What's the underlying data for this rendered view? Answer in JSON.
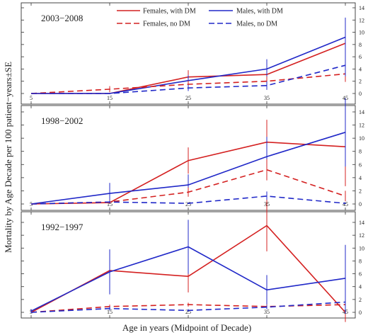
{
  "chart_data": {
    "type": "line",
    "xlabel": "Age in years (Midpoint of Decade)",
    "ylabel": "Mortality by Age Decade per 100 patient−years±SE",
    "x": [
      5,
      15,
      25,
      35,
      45
    ],
    "ylim": [
      0,
      14
    ],
    "yticks": [
      0,
      2,
      4,
      6,
      8,
      10,
      12,
      14
    ],
    "grid": false,
    "legend_position": "top",
    "legend": [
      {
        "name": "Females, with DM",
        "color": "#d42020",
        "dash": "solid"
      },
      {
        "name": "Males, with DM",
        "color": "#2028c8",
        "dash": "solid"
      },
      {
        "name": "Females, no DM",
        "color": "#d42020",
        "dash": "dashed"
      },
      {
        "name": "Males, no DM",
        "color": "#2028c8",
        "dash": "dashed"
      }
    ],
    "panels": [
      {
        "label": "2003−2008",
        "series": [
          {
            "name": "Females, with DM",
            "values": [
              0,
              0,
              2.7,
              3.1,
              8.2
            ],
            "se": [
              0,
              0,
              1.1,
              1.3,
              2.7
            ]
          },
          {
            "name": "Males, with DM",
            "values": [
              0,
              0,
              2.1,
              4.0,
              9.2
            ],
            "se": [
              0,
              0,
              0.9,
              1.6,
              3.2
            ]
          },
          {
            "name": "Females, no DM",
            "values": [
              0,
              0.7,
              1.5,
              2.0,
              3.2
            ],
            "se": [
              0,
              0.5,
              0.6,
              0.8,
              1.3
            ]
          },
          {
            "name": "Males, no DM",
            "values": [
              0,
              0,
              0.9,
              1.3,
              4.6
            ],
            "se": [
              0,
              0,
              0.5,
              0.7,
              1.8
            ]
          }
        ]
      },
      {
        "label": "1998−2002",
        "series": [
          {
            "name": "Females, with DM",
            "values": [
              0,
              0.2,
              6.6,
              9.4,
              8.7
            ],
            "se": [
              0,
              0.2,
              2.0,
              3.4,
              6.0
            ]
          },
          {
            "name": "Males, with DM",
            "values": [
              0,
              1.6,
              2.9,
              7.2,
              10.9
            ],
            "se": [
              0,
              1.6,
              1.6,
              3.0,
              5.2
            ]
          },
          {
            "name": "Females, no DM",
            "values": [
              0,
              0.3,
              1.8,
              5.2,
              1.2
            ],
            "se": [
              0,
              0.3,
              0.7,
              1.6,
              0.8
            ]
          },
          {
            "name": "Males, no DM",
            "values": [
              0,
              0.3,
              0.1,
              1.2,
              0.1
            ],
            "se": [
              0,
              0.2,
              0.1,
              0.7,
              0.1
            ]
          }
        ]
      },
      {
        "label": "1992−1997",
        "series": [
          {
            "name": "Females, with DM",
            "values": [
              0,
              6.5,
              5.6,
              13.5,
              0
            ],
            "se": [
              0,
              3.0,
              2.5,
              4.0,
              1.5
            ]
          },
          {
            "name": "Males, with DM",
            "values": [
              0.2,
              6.3,
              10.2,
              3.5,
              5.3
            ],
            "se": [
              0.3,
              3.5,
              4.2,
              2.3,
              5.2
            ]
          },
          {
            "name": "Females, no DM",
            "values": [
              0,
              0.9,
              1.2,
              0.9,
              1.2
            ],
            "se": [
              0,
              0.3,
              0.3,
              0.3,
              0.5
            ]
          },
          {
            "name": "Males, no DM",
            "values": [
              0,
              0.6,
              0.3,
              0.8,
              1.6
            ],
            "se": [
              0,
              0.3,
              0.2,
              0.3,
              1.8
            ]
          }
        ]
      }
    ]
  }
}
